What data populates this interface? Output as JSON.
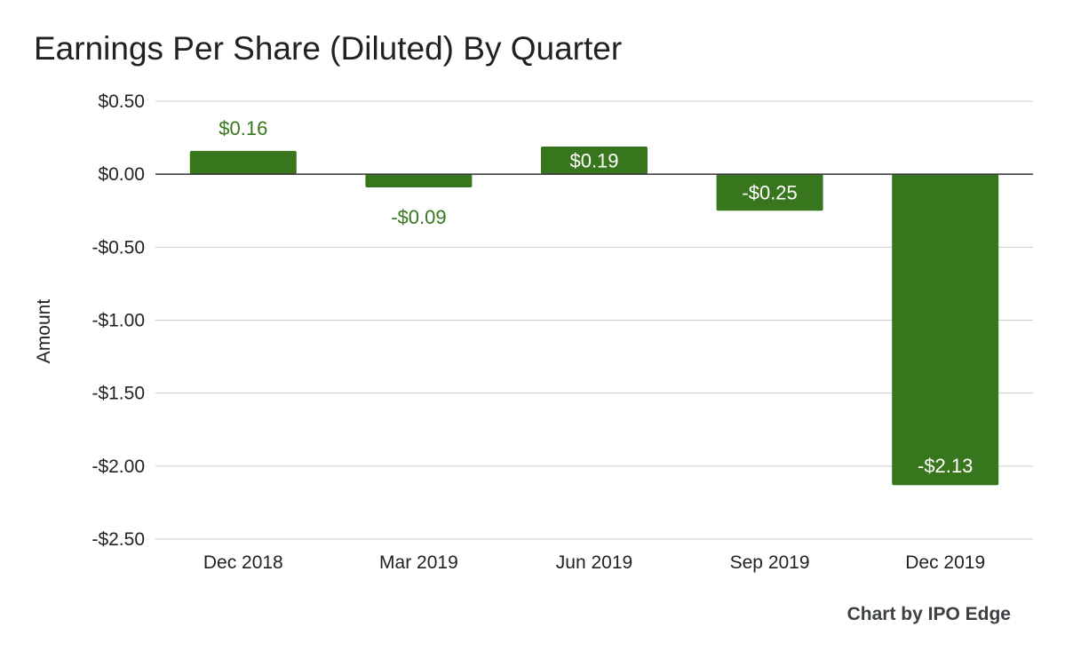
{
  "chart_data": {
    "type": "bar",
    "title": "Earnings Per Share (Diluted) By Quarter",
    "xlabel": "",
    "ylabel": "Amount",
    "categories": [
      "Dec 2018",
      "Mar 2019",
      "Jun 2019",
      "Sep 2019",
      "Dec 2019"
    ],
    "values": [
      0.16,
      -0.09,
      0.19,
      -0.25,
      -2.13
    ],
    "value_labels": [
      "$0.16",
      "-$0.09",
      "$0.19",
      "-$0.25",
      "-$2.13"
    ],
    "ylim": [
      -2.5,
      0.5
    ],
    "yticks": [
      0.5,
      0.0,
      -0.5,
      -1.0,
      -1.5,
      -2.0,
      -2.5
    ],
    "ytick_labels": [
      "$0.50",
      "$0.00",
      "-$0.50",
      "-$1.00",
      "-$1.50",
      "-$2.00",
      "-$2.50"
    ],
    "grid": true,
    "legend": "none"
  },
  "credit": "Chart by IPO Edge",
  "colors": {
    "bar": "#38761d",
    "label_outside": "#38761d",
    "label_inside": "#ffffff",
    "grid": "#cccccc",
    "zero_line": "#333333"
  }
}
